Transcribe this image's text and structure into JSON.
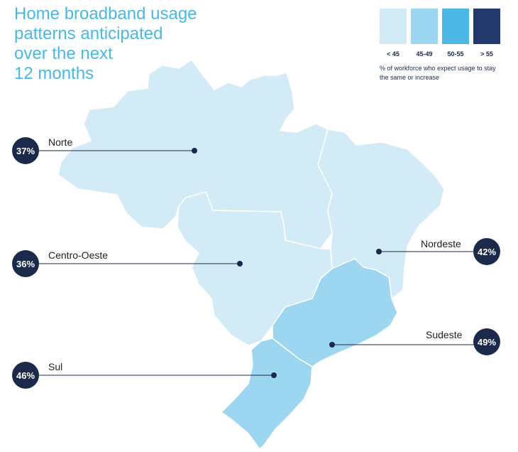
{
  "title_lines": [
    "Home broadband usage",
    "patterns anticipated",
    "over the next",
    "12 months"
  ],
  "legend": {
    "bins": [
      {
        "label": "< 45",
        "color": "#d3eaf7"
      },
      {
        "label": "45-49",
        "color": "#9dd6f1"
      },
      {
        "label": "50-55",
        "color": "#4bb8e8"
      },
      {
        "label": "> 55",
        "color": "#24396b"
      }
    ],
    "note": "% of workforce who expect usage to stay the same or increase"
  },
  "regions": [
    {
      "name": "Norte",
      "value": "37%",
      "color": "#d3eaf7"
    },
    {
      "name": "Nordeste",
      "value": "42%",
      "color": "#d3eaf7"
    },
    {
      "name": "Centro-Oeste",
      "value": "36%",
      "color": "#d3eaf7"
    },
    {
      "name": "Sudeste",
      "value": "49%",
      "color": "#9dd6f1"
    },
    {
      "name": "Sul",
      "value": "46%",
      "color": "#9dd6f1"
    }
  ]
}
